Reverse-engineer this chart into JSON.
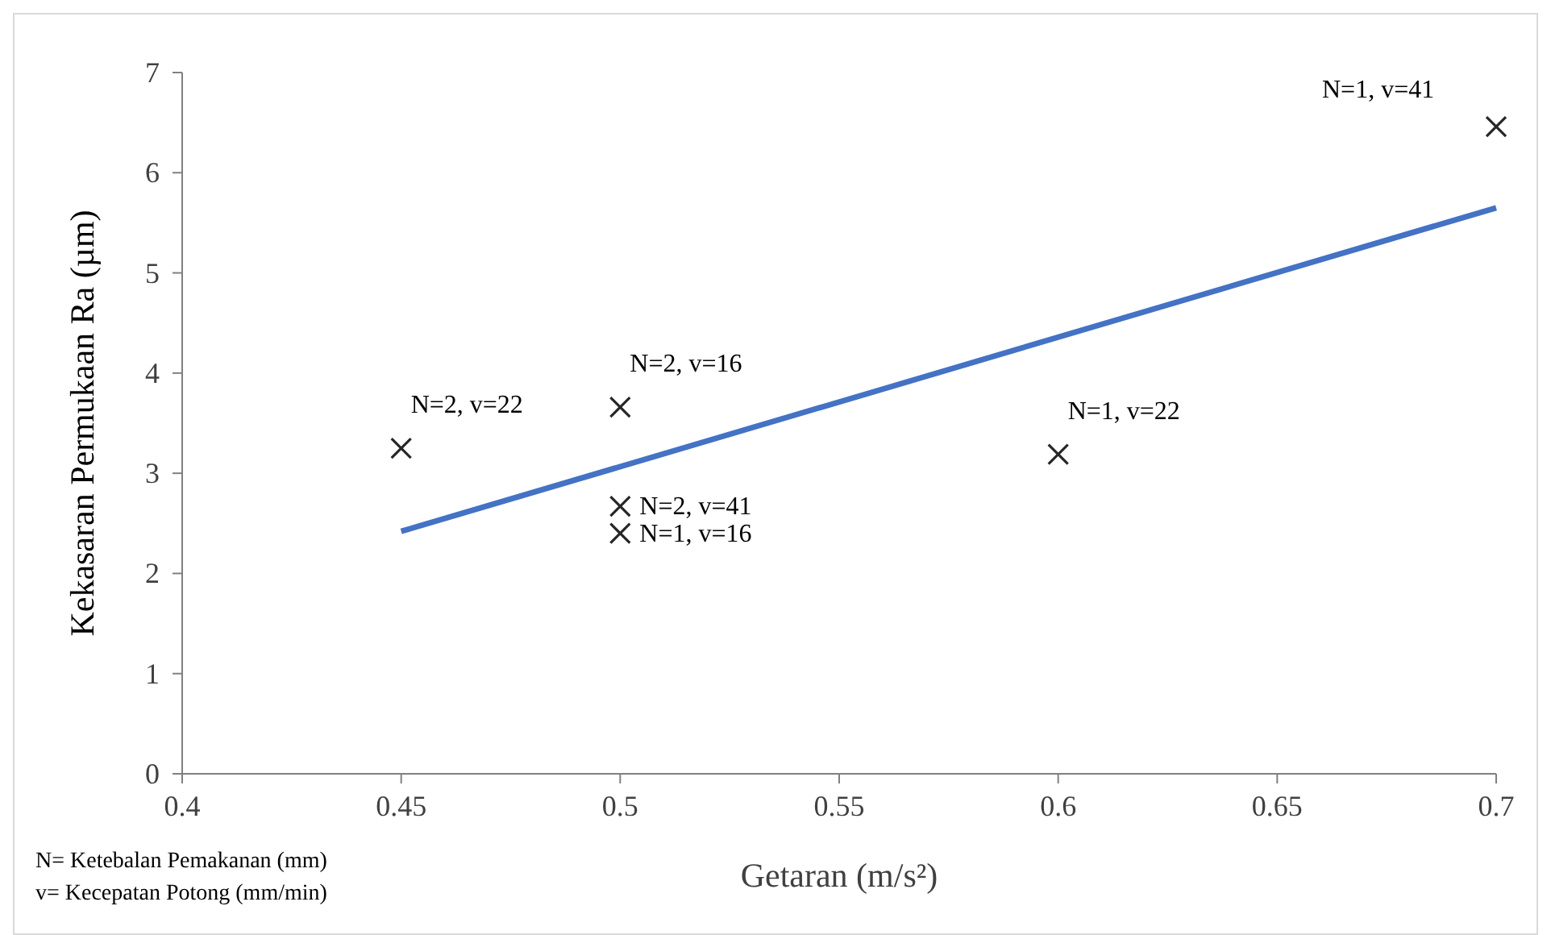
{
  "chart_data": {
    "type": "scatter",
    "xlabel": "Getaran (m/s²)",
    "ylabel": "Kekasaran Permukaan Ra (µm)",
    "xlim": [
      0.4,
      0.7
    ],
    "xticks": [
      0.4,
      0.45,
      0.5,
      0.55,
      0.6,
      0.65,
      0.7
    ],
    "ylim": [
      0,
      7
    ],
    "yticks": [
      0,
      1,
      2,
      3,
      4,
      5,
      6,
      7
    ],
    "grid": false,
    "series": [
      {
        "color": "#262626",
        "marker": "cross",
        "x": [
          0.45,
          0.5,
          0.5,
          0.5,
          0.6,
          0.7
        ],
        "values": [
          3.25,
          3.66,
          2.67,
          2.4,
          3.19,
          6.46
        ]
      },
      {
        "type": "line",
        "color": "#4472c4",
        "marker": "none",
        "line_style": "solid",
        "x": [
          0.45,
          0.7
        ],
        "values": [
          2.42,
          5.65
        ]
      }
    ],
    "annotations": [
      {
        "text": "N=2, v=22",
        "x": 0.45,
        "y": 3.25
      },
      {
        "text": "N=2, v=16",
        "x": 0.5,
        "y": 3.66
      },
      {
        "text": "N=2, v=41",
        "x": 0.5,
        "y": 2.67
      },
      {
        "text": "N=1, v=16",
        "x": 0.5,
        "y": 2.4
      },
      {
        "text": "N=1, v=22",
        "x": 0.6,
        "y": 3.19
      },
      {
        "text": "N=1, v=41",
        "x": 0.7,
        "y": 6.46
      },
      "N= Ketebalan Pemakanan (mm)",
      "v= Kecepatan Potong (mm/min)"
    ]
  }
}
